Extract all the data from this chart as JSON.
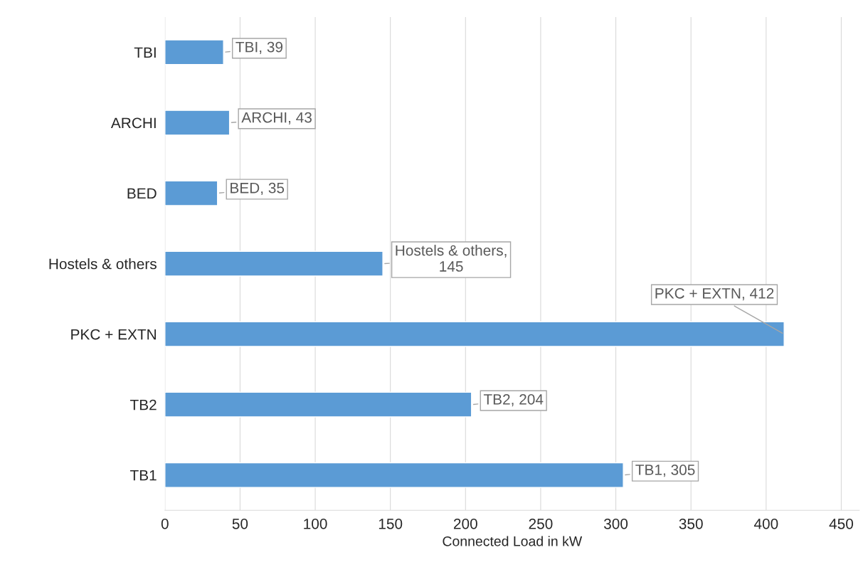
{
  "chart_data": {
    "type": "bar",
    "orientation": "horizontal",
    "xlabel": "Connected Load in kW",
    "categories": [
      "TBI",
      "ARCHI",
      "BED",
      "Hostels & others",
      "PKC + EXTN",
      "TB2",
      "TB1"
    ],
    "values": [
      39,
      43,
      35,
      145,
      412,
      204,
      305
    ],
    "value_labels": [
      "TBI, 39",
      "ARCHI, 43",
      "BED, 35",
      "Hostels & others,\n145",
      "PKC + EXTN, 412",
      "TB2, 204",
      "TB1, 305"
    ],
    "color": "#5b9bd5",
    "xlim": [
      0,
      462
    ],
    "xticks": [
      0,
      50,
      100,
      150,
      200,
      250,
      300,
      350,
      400,
      450
    ],
    "grid": "x"
  }
}
